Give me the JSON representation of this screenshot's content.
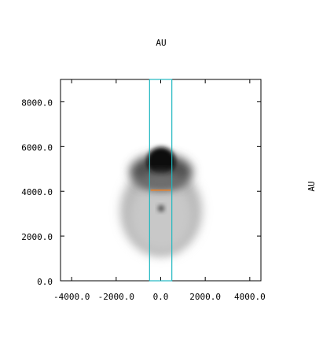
{
  "chart_data": {
    "type": "image",
    "title": "AU",
    "y2_label": "AU",
    "xlim": [
      -4500,
      4500
    ],
    "ylim": [
      0,
      9000
    ],
    "xticks": [
      {
        "value": -4000,
        "label": "-4000.0"
      },
      {
        "value": -2000,
        "label": "-2000.0"
      },
      {
        "value": 0,
        "label": "0.0"
      },
      {
        "value": 2000,
        "label": "2000.0"
      },
      {
        "value": 4000,
        "label": "4000.0"
      }
    ],
    "yticks": [
      {
        "value": 0,
        "label": "0.0"
      },
      {
        "value": 2000,
        "label": "2000.0"
      },
      {
        "value": 4000,
        "label": "4000.0"
      },
      {
        "value": 6000,
        "label": "6000.0"
      },
      {
        "value": 8000,
        "label": "8000.0"
      }
    ],
    "selection_box": {
      "x": [
        -500,
        500
      ],
      "color": "#20b8c0"
    },
    "marker_line": {
      "y": 4050,
      "x": [
        -450,
        450
      ],
      "color": "#f08020"
    }
  }
}
